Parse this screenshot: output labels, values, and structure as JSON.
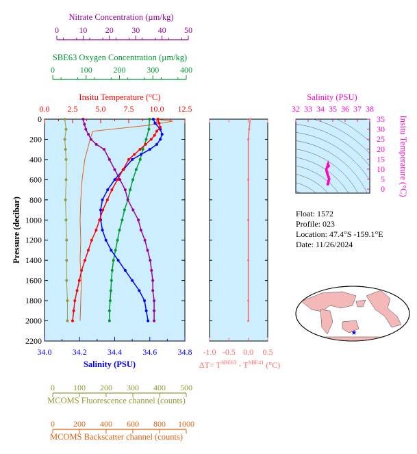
{
  "colors": {
    "temperature": "#ff0000",
    "salinity": "#0000ff",
    "oxygen": "#009933",
    "nitrate": "#990099",
    "fluorescence": "#999933",
    "backscatter": "#e06010",
    "ts": "#ff00cc",
    "dt": "#ff6666",
    "panel_bg": "#cceeff",
    "land": "#f4b8b8"
  },
  "info": {
    "float_line": "Float:  1572",
    "profile_line": "Profile:  023",
    "location_line": "Location:  47.4°S  -159.1°E",
    "date_line": "Date:  11/26/2024"
  },
  "chart_data": [
    {
      "id": "main-profile",
      "type": "line",
      "ylabel": "Pressure (decibar)",
      "ylim": [
        2200,
        0
      ],
      "y_ticks": [
        "0",
        "200",
        "400",
        "600",
        "800",
        "1000",
        "1200",
        "1400",
        "1600",
        "1800",
        "2000",
        "2200"
      ],
      "axes": {
        "nitrate": {
          "label": "Nitrate Concentration (µm/kg)",
          "lim": [
            0,
            50
          ],
          "ticks": [
            "0",
            "10",
            "20",
            "30",
            "40",
            "50"
          ]
        },
        "oxygen": {
          "label": "SBE63 Oxygen Concentration (µm/kg)",
          "lim": [
            0,
            400
          ],
          "ticks": [
            "0",
            "100",
            "200",
            "300",
            "400"
          ]
        },
        "temperature": {
          "label": "Insitu Temperature (°C)",
          "lim": [
            0,
            12.5
          ],
          "ticks": [
            "0.0",
            "2.5",
            "5.0",
            "7.5",
            "10.0",
            "12.5"
          ]
        },
        "salinity": {
          "label": "Salinity (PSU)",
          "lim": [
            34.0,
            34.8
          ],
          "ticks": [
            "34.0",
            "34.2",
            "34.4",
            "34.6",
            "34.8"
          ]
        },
        "fluorescence": {
          "label": "MCOMS Fluorescence channel (counts)",
          "lim": [
            0,
            500
          ],
          "ticks": [
            "0",
            "100",
            "200",
            "300",
            "400",
            "500"
          ]
        },
        "backscatter": {
          "label": "MCOMS Backscatter channel (counts)",
          "lim": [
            0,
            1000
          ],
          "ticks": [
            "0",
            "200",
            "400",
            "600",
            "800",
            "1000"
          ]
        }
      },
      "series": [
        {
          "key": "temperature",
          "axis": "temperature",
          "markers": true,
          "points": [
            [
              10.1,
              0
            ],
            [
              10.2,
              40
            ],
            [
              10.3,
              80
            ],
            [
              10.0,
              120
            ],
            [
              9.8,
              160
            ],
            [
              9.5,
              200
            ],
            [
              9.0,
              250
            ],
            [
              8.5,
              300
            ],
            [
              8.0,
              350
            ],
            [
              7.5,
              400
            ],
            [
              7.0,
              500
            ],
            [
              6.5,
              600
            ],
            [
              6.0,
              700
            ],
            [
              5.6,
              800
            ],
            [
              5.2,
              900
            ],
            [
              4.9,
              1000
            ],
            [
              4.6,
              1100
            ],
            [
              4.2,
              1200
            ],
            [
              3.9,
              1300
            ],
            [
              3.6,
              1400
            ],
            [
              3.3,
              1500
            ],
            [
              3.1,
              1600
            ],
            [
              2.9,
              1700
            ],
            [
              2.7,
              1800
            ],
            [
              2.6,
              1900
            ],
            [
              2.5,
              2000
            ]
          ]
        },
        {
          "key": "salinity",
          "axis": "salinity",
          "markers": true,
          "points": [
            [
              34.62,
              0
            ],
            [
              34.63,
              40
            ],
            [
              34.66,
              100
            ],
            [
              34.67,
              150
            ],
            [
              34.66,
              200
            ],
            [
              34.64,
              250
            ],
            [
              34.6,
              300
            ],
            [
              34.55,
              350
            ],
            [
              34.5,
              400
            ],
            [
              34.45,
              500
            ],
            [
              34.4,
              600
            ],
            [
              34.36,
              700
            ],
            [
              34.33,
              800
            ],
            [
              34.32,
              900
            ],
            [
              34.32,
              1000
            ],
            [
              34.33,
              1100
            ],
            [
              34.35,
              1200
            ],
            [
              34.38,
              1300
            ],
            [
              34.42,
              1400
            ],
            [
              34.46,
              1500
            ],
            [
              34.5,
              1600
            ],
            [
              34.54,
              1700
            ],
            [
              34.57,
              1800
            ],
            [
              34.58,
              1900
            ],
            [
              34.59,
              2000
            ]
          ]
        },
        {
          "key": "oxygen",
          "axis": "oxygen",
          "markers": true,
          "points": [
            [
              290,
              0
            ],
            [
              288,
              100
            ],
            [
              280,
              200
            ],
            [
              270,
              300
            ],
            [
              262,
              400
            ],
            [
              250,
              500
            ],
            [
              240,
              600
            ],
            [
              232,
              700
            ],
            [
              225,
              800
            ],
            [
              215,
              900
            ],
            [
              208,
              1000
            ],
            [
              200,
              1100
            ],
            [
              194,
              1200
            ],
            [
              188,
              1300
            ],
            [
              182,
              1400
            ],
            [
              178,
              1500
            ],
            [
              176,
              1600
            ],
            [
              174,
              1700
            ],
            [
              172,
              1800
            ],
            [
              170,
              1900
            ],
            [
              170,
              2000
            ]
          ]
        },
        {
          "key": "nitrate",
          "axis": "nitrate",
          "markers": true,
          "points": [
            [
              10,
              0
            ],
            [
              10.5,
              50
            ],
            [
              11,
              100
            ],
            [
              12,
              150
            ],
            [
              13,
              200
            ],
            [
              15,
              250
            ],
            [
              18,
              300
            ],
            [
              20,
              400
            ],
            [
              22,
              500
            ],
            [
              24,
              600
            ],
            [
              26,
              700
            ],
            [
              27,
              800
            ],
            [
              29,
              900
            ],
            [
              31,
              1000
            ],
            [
              32,
              1100
            ],
            [
              33.5,
              1200
            ],
            [
              34.5,
              1300
            ],
            [
              35.5,
              1400
            ],
            [
              36,
              1500
            ],
            [
              36.5,
              1600
            ],
            [
              36.5,
              1700
            ],
            [
              37,
              1800
            ],
            [
              37,
              1900
            ],
            [
              37,
              2000
            ]
          ]
        },
        {
          "key": "fluorescence",
          "axis": "fluorescence",
          "markers": true,
          "points": [
            [
              45,
              0
            ],
            [
              50,
              100
            ],
            [
              45,
              200
            ],
            [
              48,
              300
            ],
            [
              50,
              400
            ],
            [
              50,
              600
            ],
            [
              48,
              800
            ],
            [
              50,
              1000
            ],
            [
              52,
              1200
            ],
            [
              52,
              1400
            ],
            [
              52,
              1600
            ],
            [
              55,
              1800
            ],
            [
              55,
              2000
            ]
          ]
        },
        {
          "key": "backscatter",
          "axis": "backscatter",
          "markers": false,
          "points": [
            [
              770,
              0
            ],
            [
              900,
              20
            ],
            [
              720,
              60
            ],
            [
              300,
              120
            ],
            [
              280,
              200
            ],
            [
              260,
              300
            ],
            [
              240,
              400
            ],
            [
              230,
              500
            ],
            [
              220,
              600
            ],
            [
              210,
              800
            ],
            [
              205,
              1000
            ],
            [
              210,
              1200
            ],
            [
              205,
              1400
            ],
            [
              215,
              1600
            ],
            [
              210,
              1800
            ],
            [
              205,
              2000
            ]
          ]
        }
      ]
    },
    {
      "id": "dt-profile",
      "type": "line",
      "xlabel": "ΔT= T^SBE63 - T^SBE41 (°C)",
      "xlim": [
        -1.0,
        0.5
      ],
      "x_ticks": [
        "-1.0",
        "-0.5",
        "0.0",
        "0.5"
      ],
      "ylim": [
        2200,
        0
      ],
      "series": [
        {
          "key": "dt",
          "points": [
            [
              0.05,
              0
            ],
            [
              0.02,
              100
            ],
            [
              0.0,
              200
            ],
            [
              0.0,
              600
            ],
            [
              0.0,
              1000
            ],
            [
              0.0,
              1400
            ],
            [
              0.0,
              1800
            ],
            [
              0.0,
              2000
            ]
          ]
        }
      ]
    },
    {
      "id": "ts-diagram",
      "type": "scatter",
      "xlabel": "Salinity (PSU)",
      "ylabel": "Insitu Temperature (°C)",
      "xlim": [
        32,
        38
      ],
      "ylim": [
        -2,
        35
      ],
      "x_ticks": [
        "32",
        "33",
        "34",
        "35",
        "36",
        "37",
        "38"
      ],
      "y_ticks": [
        "0",
        "5",
        "10",
        "15",
        "20",
        "25",
        "30",
        "35"
      ],
      "series": [
        {
          "key": "ts",
          "points": [
            [
              34.59,
              2.5
            ],
            [
              34.62,
              3.0
            ],
            [
              34.66,
              4.0
            ],
            [
              34.7,
              5.0
            ],
            [
              34.66,
              6.0
            ],
            [
              34.6,
              7.0
            ],
            [
              34.55,
              8.0
            ],
            [
              34.5,
              9.0
            ],
            [
              34.48,
              10.0
            ],
            [
              34.55,
              11.0
            ],
            [
              34.62,
              12.5
            ],
            [
              34.66,
              11.5
            ]
          ]
        }
      ]
    }
  ]
}
